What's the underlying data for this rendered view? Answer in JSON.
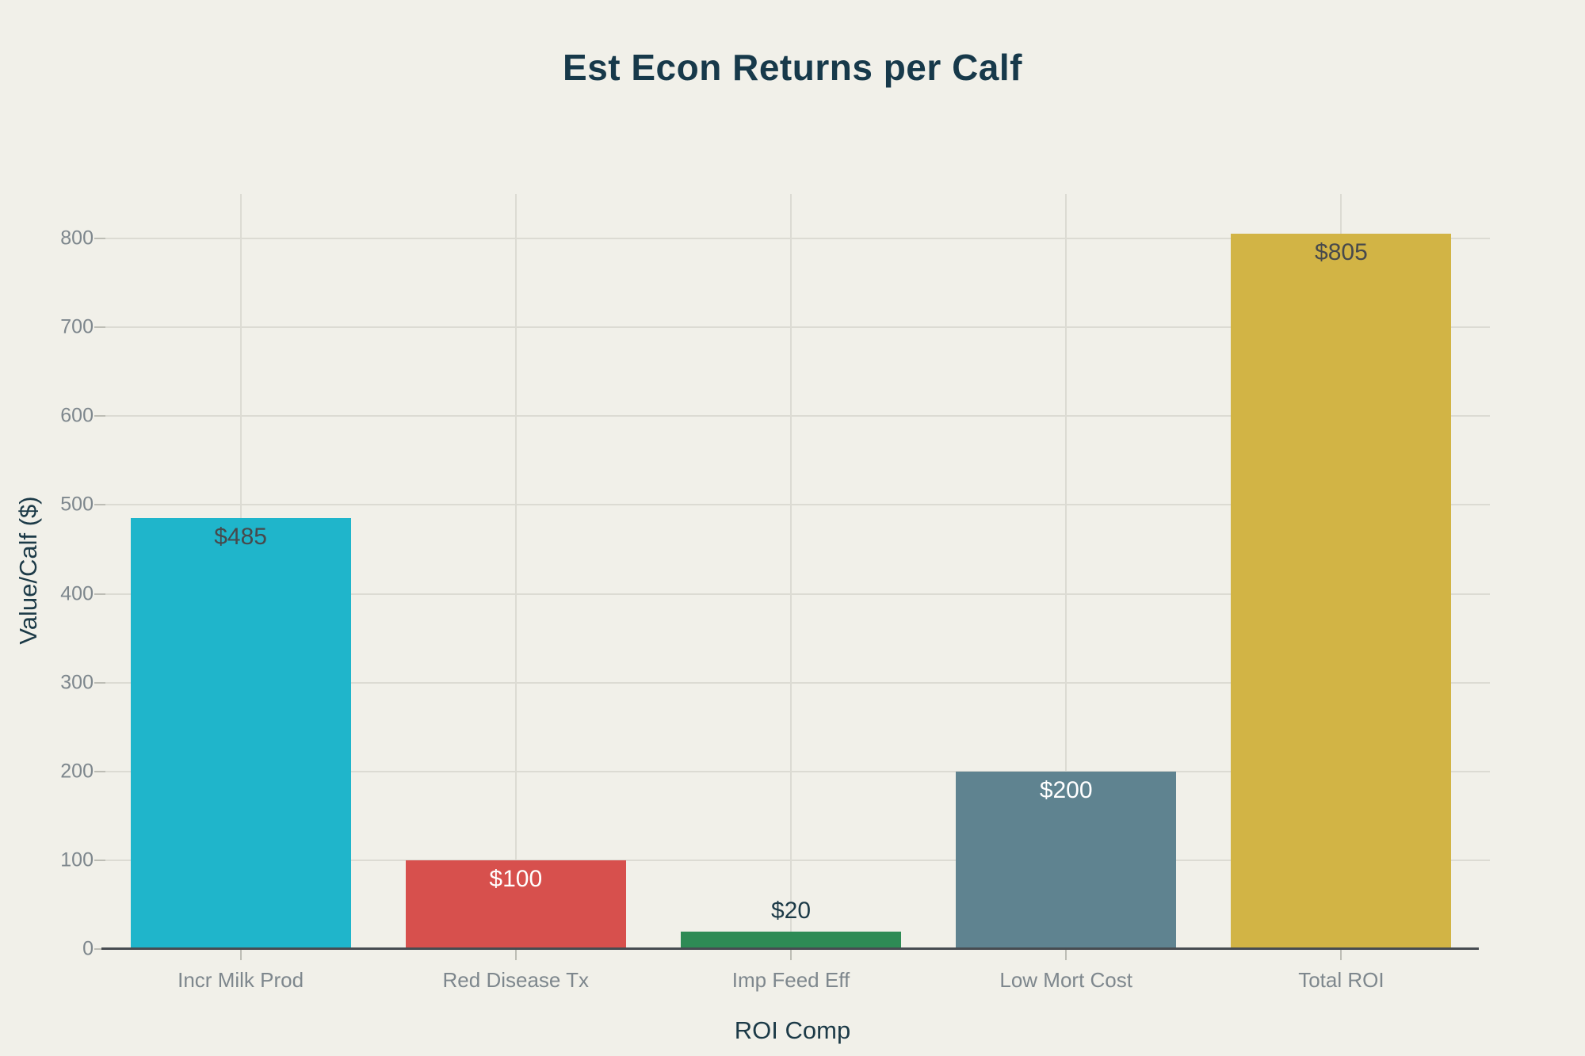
{
  "chart_data": {
    "type": "bar",
    "title": "Est Econ Returns per Calf",
    "xlabel": "ROI Comp",
    "ylabel": "Value/Calf ($)",
    "categories": [
      "Incr Milk Prod",
      "Red Disease Tx",
      "Imp Feed Eff",
      "Low Mort Cost",
      "Total ROI"
    ],
    "values": [
      485,
      100,
      20,
      200,
      805
    ],
    "value_labels": [
      "$485",
      "$100",
      "$20",
      "$200",
      "$805"
    ],
    "bar_colors": [
      "#1fb5cb",
      "#d7504d",
      "#2e8b55",
      "#5f8390",
      "#d2b445"
    ],
    "value_label_colors": [
      "#47494c",
      "#ffffff",
      "#1c3a47",
      "#ffffff",
      "#47494c"
    ],
    "value_label_placement": [
      "inside",
      "inside",
      "outside",
      "inside",
      "inside"
    ],
    "yticks": [
      0,
      100,
      200,
      300,
      400,
      500,
      600,
      700,
      800
    ],
    "ylim": [
      0,
      850
    ],
    "grid": true,
    "legend": false
  },
  "colors": {
    "background": "#f1f0e9",
    "title_text": "#17394a",
    "axis_title_text": "#1c3a47",
    "tick_label_text": "#7e878d",
    "gridline": "#dcdbd3",
    "tick_mark": "#bdbdb5",
    "axis_line": "#474c51"
  }
}
